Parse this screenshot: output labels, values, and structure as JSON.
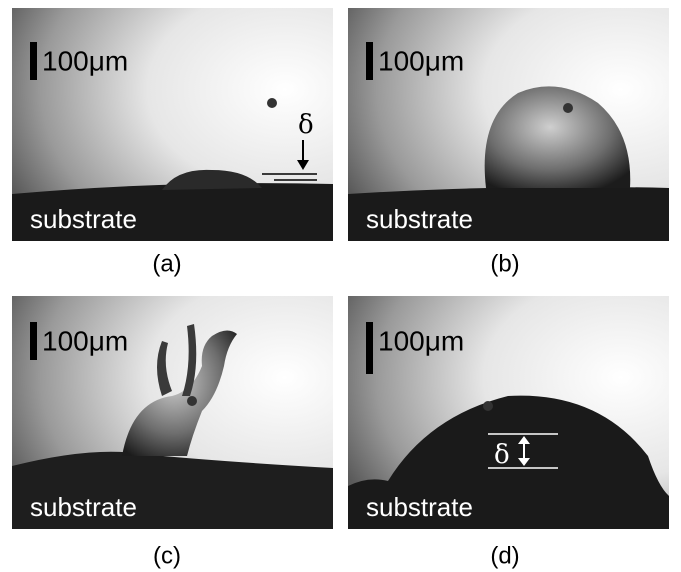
{
  "panels": [
    {
      "label": "(a)",
      "scale": "100μm",
      "substrate": "substrate",
      "delta": "δ"
    },
    {
      "label": "(b)",
      "scale": "100μm",
      "substrate": "substrate"
    },
    {
      "label": "(c)",
      "scale": "100μm",
      "substrate": "substrate"
    },
    {
      "label": "(d)",
      "scale": "100μm",
      "substrate": "substrate",
      "delta": "δ"
    }
  ]
}
